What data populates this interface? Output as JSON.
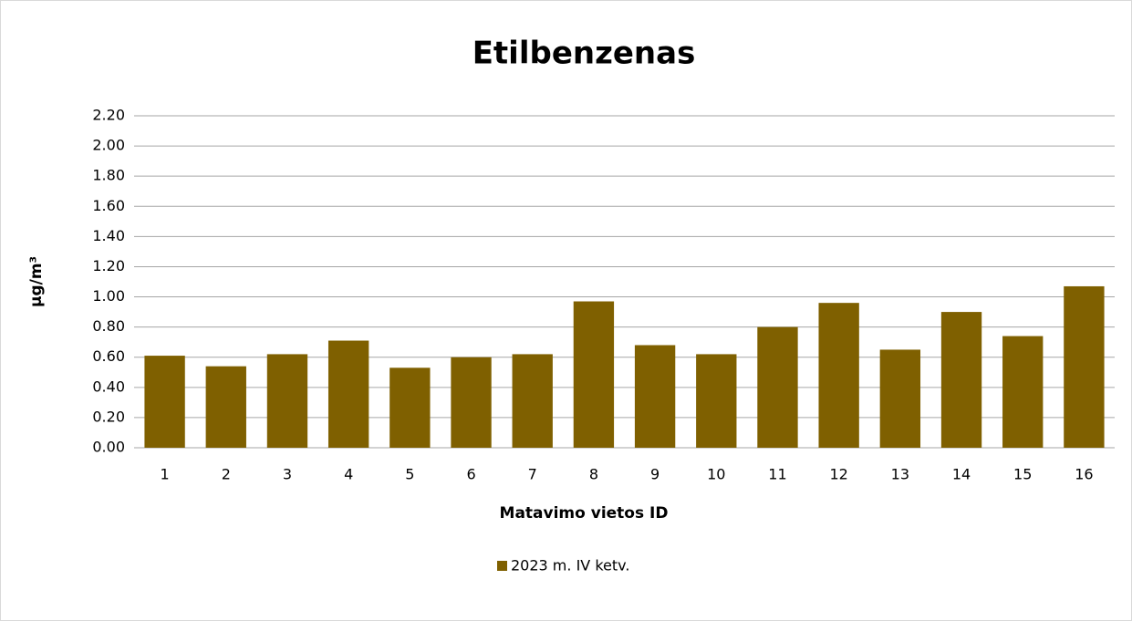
{
  "chart_data": {
    "type": "bar",
    "title": "Etilbenzenas",
    "x_label": "Matavimo vietos ID",
    "y_label": "µg/m³",
    "categories": [
      "1",
      "2",
      "3",
      "4",
      "5",
      "6",
      "7",
      "8",
      "9",
      "10",
      "11",
      "12",
      "13",
      "14",
      "15",
      "16"
    ],
    "series": [
      {
        "name": "2023 m. IV ketv.",
        "color": "#7f6000",
        "values": [
          0.61,
          0.54,
          0.62,
          0.71,
          0.53,
          0.6,
          0.62,
          0.97,
          0.68,
          0.62,
          0.8,
          0.96,
          0.65,
          0.9,
          0.74,
          1.07
        ]
      }
    ],
    "ylim": [
      0,
      2.2
    ],
    "yticks": [
      {
        "value": 0,
        "label": "0.00"
      },
      {
        "value": 0.2,
        "label": "0.20"
      },
      {
        "value": 0.4,
        "label": "0.40"
      },
      {
        "value": 0.6,
        "label": "0.60"
      },
      {
        "value": 0.8,
        "label": "0.80"
      },
      {
        "value": 1.0,
        "label": "1.00"
      },
      {
        "value": 1.2,
        "label": "1.20"
      },
      {
        "value": 1.4,
        "label": "1.40"
      },
      {
        "value": 1.6,
        "label": "1.60"
      },
      {
        "value": 1.8,
        "label": "1.80"
      },
      {
        "value": 2.0,
        "label": "2.00"
      },
      {
        "value": 2.2,
        "label": "2.20"
      }
    ],
    "grid": true,
    "legend": "bottom"
  }
}
